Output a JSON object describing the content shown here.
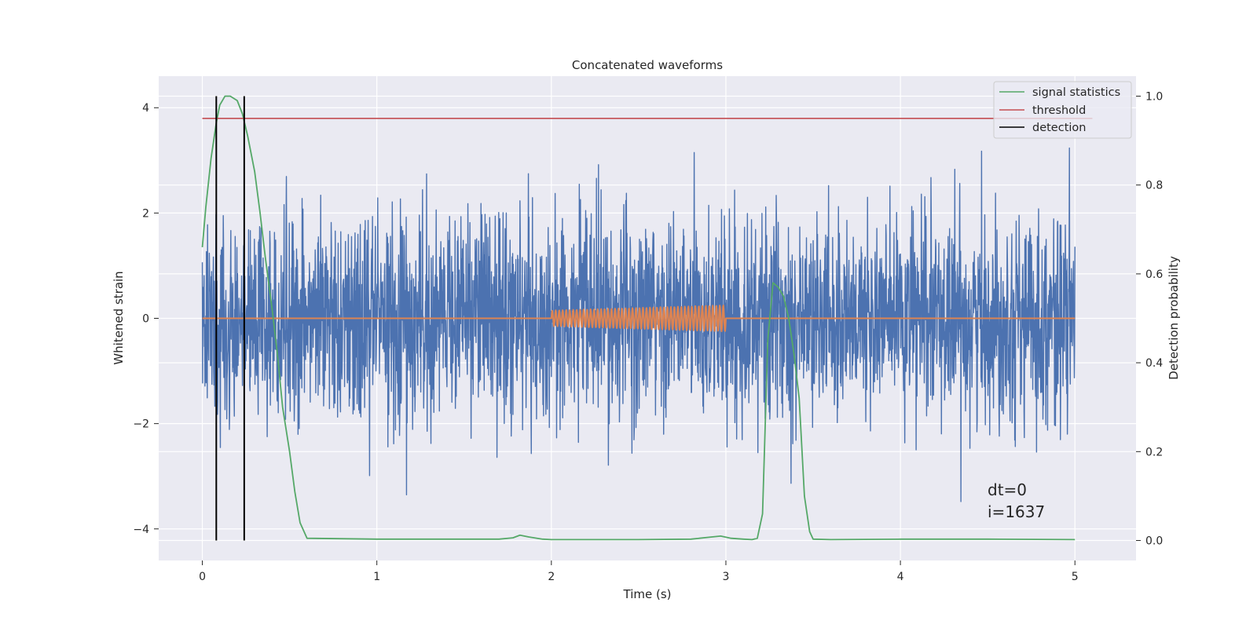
{
  "chart_data": {
    "type": "line",
    "title": "Concatenated waveforms",
    "xlabel": "Time (s)",
    "ylabel": "Whitened strain",
    "ylabel_right": "Detection probability",
    "xlim": [
      -0.25,
      5.35
    ],
    "ylim": [
      -4.6,
      4.6
    ],
    "ylim_right": [
      -0.045,
      1.045
    ],
    "x_ticks": [
      0,
      1,
      2,
      3,
      4,
      5
    ],
    "x_tick_labels": [
      "0",
      "1",
      "2",
      "3",
      "4",
      "5"
    ],
    "y_ticks": [
      -4,
      -2,
      0,
      2,
      4
    ],
    "y_tick_labels": [
      "−4",
      "−2",
      "0",
      "2",
      "4"
    ],
    "y_ticks_right": [
      0.0,
      0.2,
      0.4,
      0.6,
      0.8,
      1.0
    ],
    "y_tick_labels_right": [
      "0.0",
      "0.2",
      "0.4",
      "0.6",
      "0.8",
      "1.0"
    ],
    "grid": true,
    "legend_position": "top-right",
    "legend": [
      {
        "label": "signal statistics",
        "color": "#55a868"
      },
      {
        "label": "threshold",
        "color": "#c44e52"
      },
      {
        "label": "detection",
        "color": "#000000"
      }
    ],
    "series": [
      {
        "kind": "noise",
        "axis": "left",
        "color": "#4c72b0",
        "x_range": [
          0,
          5
        ],
        "envelope": [
          -4.0,
          4.0
        ],
        "note_values": "dense whitened noise, typical |amplitude| within about ±2.5, extremes near ±4"
      },
      {
        "kind": "chirp",
        "axis": "left",
        "color": "#dd8452",
        "baseline_x": [
          0,
          5
        ],
        "baseline_y": 0,
        "chirp_x_range": [
          2.0,
          3.0
        ],
        "amplitude_range": [
          0.15,
          0.25
        ],
        "cycles": 50
      },
      {
        "name": "signal statistics",
        "axis": "right",
        "color": "#55a868",
        "x": [
          0.0,
          0.02,
          0.05,
          0.08,
          0.1,
          0.13,
          0.16,
          0.2,
          0.23,
          0.26,
          0.3,
          0.33,
          0.36,
          0.4,
          0.43,
          0.46,
          0.5,
          0.53,
          0.56,
          0.6,
          1.0,
          1.5,
          1.7,
          1.78,
          1.82,
          1.87,
          1.95,
          2.0,
          2.5,
          2.8,
          2.92,
          2.97,
          3.03,
          3.1,
          3.15,
          3.18,
          3.21,
          3.24,
          3.27,
          3.3,
          3.33,
          3.36,
          3.39,
          3.42,
          3.45,
          3.48,
          3.5,
          3.6,
          4.0,
          4.5,
          5.0
        ],
        "y": [
          0.66,
          0.75,
          0.86,
          0.94,
          0.98,
          1.0,
          1.0,
          0.99,
          0.96,
          0.91,
          0.83,
          0.74,
          0.64,
          0.52,
          0.42,
          0.3,
          0.2,
          0.11,
          0.04,
          0.005,
          0.003,
          0.003,
          0.003,
          0.006,
          0.012,
          0.008,
          0.003,
          0.002,
          0.002,
          0.003,
          0.008,
          0.01,
          0.005,
          0.003,
          0.002,
          0.005,
          0.06,
          0.45,
          0.58,
          0.57,
          0.55,
          0.5,
          0.42,
          0.32,
          0.1,
          0.02,
          0.003,
          0.002,
          0.003,
          0.003,
          0.002
        ]
      },
      {
        "name": "threshold",
        "axis": "right",
        "color": "#c44e52",
        "x": [
          0,
          5.1
        ],
        "y": [
          0.95,
          0.95
        ]
      },
      {
        "name": "detection",
        "axis": "right",
        "color": "#000000",
        "kind": "vlines",
        "x": [
          0.08,
          0.24
        ],
        "y_range": [
          0.0,
          1.0
        ]
      }
    ],
    "annotations": [
      "dt=0",
      "i=1637"
    ]
  }
}
